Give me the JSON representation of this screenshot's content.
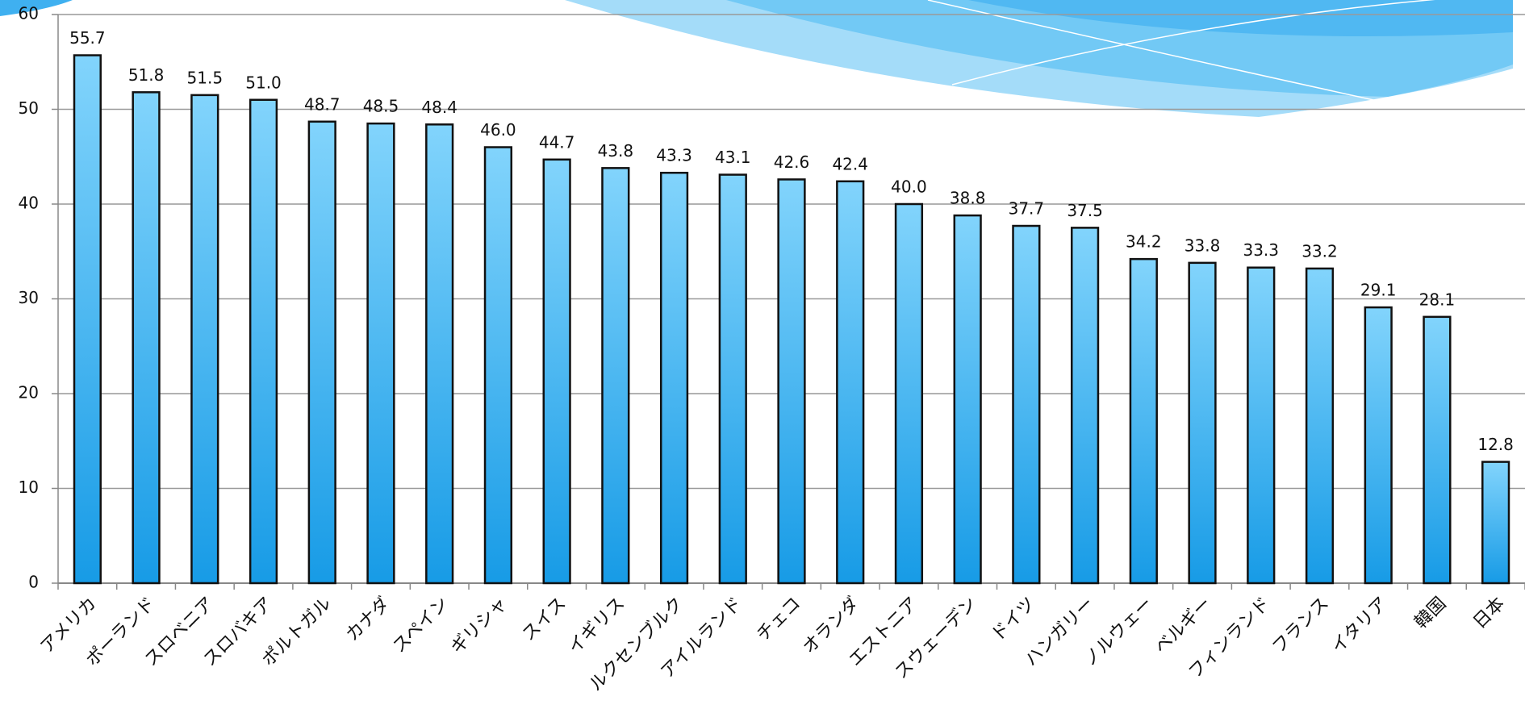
{
  "chart_data": {
    "type": "bar",
    "categories": [
      "アメリカ",
      "ポーランド",
      "スロベニア",
      "スロバキア",
      "ポルトガル",
      "カナダ",
      "スペイン",
      "ギリシャ",
      "スイス",
      "イギリス",
      "ルクセンブルク",
      "アイルランド",
      "チェコ",
      "オランダ",
      "エストニア",
      "スウェーデン",
      "ドイツ",
      "ハンガリー",
      "ノルウェー",
      "ベルギー",
      "フィンランド",
      "フランス",
      "イタリア",
      "韓国",
      "日本"
    ],
    "values": [
      55.7,
      51.8,
      51.5,
      51.0,
      48.7,
      48.5,
      48.4,
      46.0,
      44.7,
      43.8,
      43.3,
      43.1,
      42.6,
      42.4,
      40.0,
      38.8,
      37.7,
      37.5,
      34.2,
      33.8,
      33.3,
      33.2,
      29.1,
      28.1,
      12.8
    ],
    "value_labels": [
      "55.7",
      "51.8",
      "51.5",
      "51.0",
      "48.7",
      "48.5",
      "48.4",
      "46.0",
      "44.7",
      "43.8",
      "43.3",
      "43.1",
      "42.6",
      "42.4",
      "40.0",
      "38.8",
      "37.7",
      "37.5",
      "34.2",
      "33.8",
      "33.3",
      "33.2",
      "29.1",
      "28.1",
      "12.8"
    ],
    "color": "#36aef0",
    "ylim": [
      0,
      60
    ],
    "yticks": [
      0,
      10,
      20,
      30,
      40,
      50,
      60
    ],
    "grid": true
  }
}
